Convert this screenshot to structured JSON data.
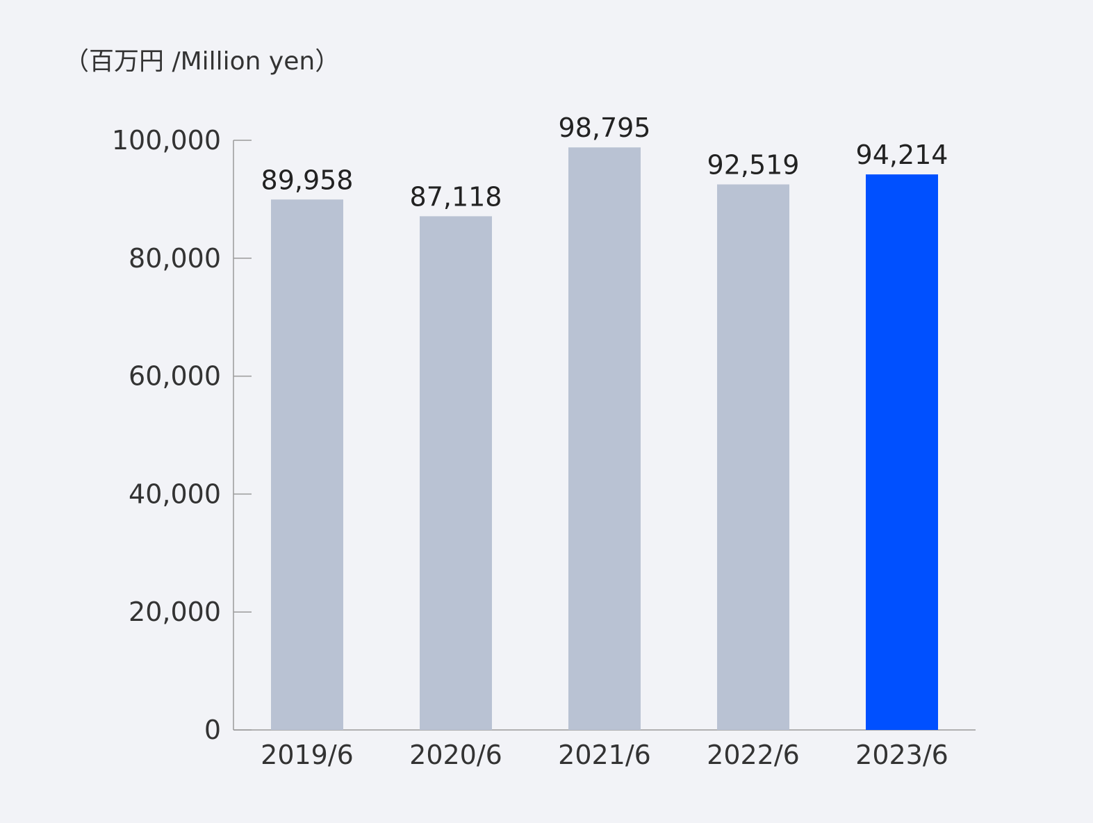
{
  "chart_data": {
    "type": "bar",
    "unit_label": "（百万円 /Million yen）",
    "categories": [
      "2019/6",
      "2020/6",
      "2021/6",
      "2022/6",
      "2023/6"
    ],
    "values": [
      89958,
      87118,
      98795,
      92519,
      94214
    ],
    "value_labels": [
      "89,958",
      "87,118",
      "98,795",
      "92,519",
      "94,214"
    ],
    "ylim": [
      0,
      100000
    ],
    "yticks": [
      0,
      20000,
      40000,
      60000,
      80000,
      100000
    ],
    "ytick_labels": [
      "0",
      "20,000",
      "40,000",
      "60,000",
      "80,000",
      "100,000"
    ],
    "grid": false,
    "colors": {
      "default_bar": "#b9c2d3",
      "highlight_bar": "#0050ff"
    },
    "highlight_index": 4
  }
}
